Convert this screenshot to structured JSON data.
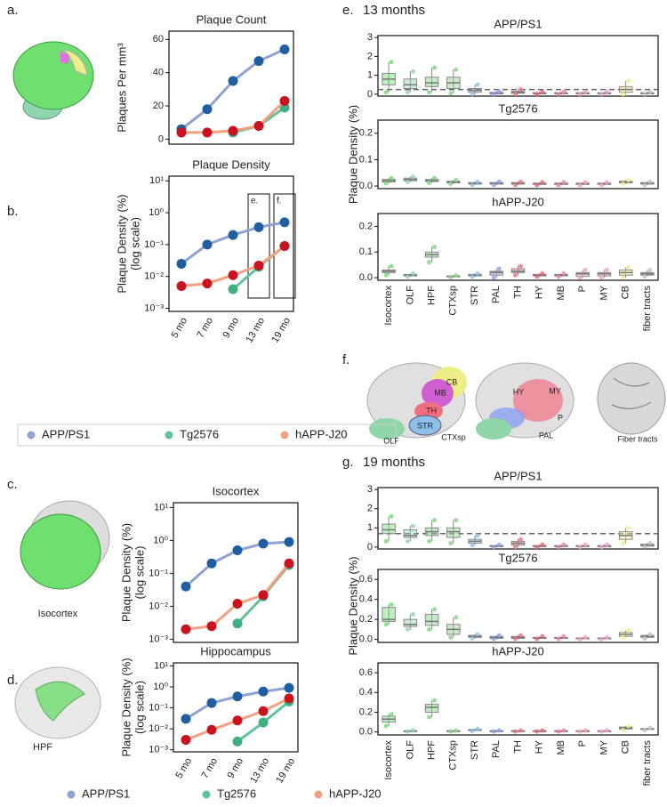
{
  "figure": {
    "letters": [
      "a.",
      "b.",
      "c.",
      "d.",
      "e.",
      "f.",
      "g."
    ],
    "e_header": "13 months",
    "g_header": "19 months",
    "brain_labels": [
      "Isocortex",
      "HPF"
    ],
    "f_labels": [
      "CB",
      "MB",
      "TH",
      "STR",
      "OLF",
      "CTXsp",
      "HY",
      "MY",
      "P",
      "PAL",
      "Fiber tracts"
    ]
  },
  "chart_data": [
    {
      "type": "line",
      "title": "Plaque Count",
      "ylabel": [
        "Plaques Per mm³"
      ],
      "ylim": [
        -3,
        65
      ],
      "yticks": [
        0,
        20,
        40,
        60
      ],
      "series": [
        {
          "name": "APP/PS1",
          "color": "#8ea3d3",
          "marker_color": "#1f5fa0",
          "values": [
            6,
            18,
            35,
            47,
            54
          ]
        },
        {
          "name": "Tg2576",
          "color": "#5ec29a",
          "marker_color": "#3fae82",
          "values": [
            null,
            null,
            4,
            8,
            19
          ]
        },
        {
          "name": "hAPP-J20",
          "color": "#f3a080",
          "marker_color": "#c8141e",
          "values": [
            4,
            4,
            5,
            8,
            23
          ]
        }
      ]
    },
    {
      "type": "line",
      "title": "Plaque Density",
      "ylabel": [
        "Plaque Density (%)",
        "(log scale)"
      ],
      "log": true,
      "ylim": [
        0.0008,
        14
      ],
      "yticks": [
        {
          "value": 0.001,
          "label": "10⁻³"
        },
        {
          "value": 0.01,
          "label": "10⁻²"
        },
        {
          "value": 0.1,
          "label": "10⁻¹"
        },
        {
          "value": 1,
          "label": "10⁰"
        },
        {
          "value": 10,
          "label": "10¹"
        }
      ],
      "categories": [
        "5 mo",
        "7 mo",
        "9 mo",
        "13 mo",
        "19 mo"
      ],
      "annotations": [
        null,
        null,
        null,
        "e.",
        "f."
      ],
      "series": [
        {
          "name": "APP/PS1",
          "color": "#8ea3d3",
          "marker_color": "#1f5fa0",
          "values": [
            0.025,
            0.1,
            0.2,
            0.35,
            0.5
          ]
        },
        {
          "name": "Tg2576",
          "color": "#5ec29a",
          "marker_color": "#3fae82",
          "values": [
            null,
            null,
            0.004,
            0.02,
            0.09
          ]
        },
        {
          "name": "hAPP-J20",
          "color": "#f3a080",
          "marker_color": "#c8141e",
          "values": [
            0.005,
            0.006,
            0.011,
            0.022,
            0.09
          ]
        }
      ]
    },
    {
      "type": "line",
      "title": "Isocortex",
      "ylabel": [
        "Plaque Density (%)",
        "(log scale)"
      ],
      "log": true,
      "ylim": [
        0.0008,
        14
      ],
      "yticks": [
        {
          "value": 0.001,
          "label": "10⁻³"
        },
        {
          "value": 0.01,
          "label": "10⁻²"
        },
        {
          "value": 0.1,
          "label": "10⁻¹"
        },
        {
          "value": 1,
          "label": "10⁰"
        },
        {
          "value": 10,
          "label": "10¹"
        }
      ],
      "series": [
        {
          "name": "APP/PS1",
          "color": "#8ea3d3",
          "marker_color": "#1f5fa0",
          "values": [
            0.04,
            0.2,
            0.5,
            0.8,
            0.9
          ]
        },
        {
          "name": "Tg2576",
          "color": "#5ec29a",
          "marker_color": "#3fae82",
          "values": [
            null,
            null,
            0.003,
            0.02,
            0.18
          ]
        },
        {
          "name": "hAPP-J20",
          "color": "#f3a080",
          "marker_color": "#c8141e",
          "values": [
            0.002,
            0.0025,
            0.012,
            0.022,
            0.2
          ]
        }
      ]
    },
    {
      "type": "line",
      "title": "Hippocampus",
      "ylabel": [
        "Plaque Density (%)",
        "(log scale)"
      ],
      "log": true,
      "ylim": [
        0.0008,
        14
      ],
      "yticks": [
        {
          "value": 0.001,
          "label": "10⁻³"
        },
        {
          "value": 0.01,
          "label": "10⁻²"
        },
        {
          "value": 0.1,
          "label": "10⁻¹"
        },
        {
          "value": 1,
          "label": "10⁰"
        },
        {
          "value": 10,
          "label": "10¹"
        }
      ],
      "categories": [
        "5 mo",
        "7 mo",
        "9 mo",
        "13 mo",
        "19 mo"
      ],
      "series": [
        {
          "name": "APP/PS1",
          "color": "#8ea3d3",
          "marker_color": "#1f5fa0",
          "values": [
            0.03,
            0.17,
            0.35,
            0.6,
            0.9
          ]
        },
        {
          "name": "Tg2576",
          "color": "#5ec29a",
          "marker_color": "#3fae82",
          "values": [
            null,
            null,
            0.0025,
            0.02,
            0.2
          ]
        },
        {
          "name": "hAPP-J20",
          "color": "#f3a080",
          "marker_color": "#c8141e",
          "values": [
            0.003,
            0.009,
            0.025,
            0.07,
            0.28
          ]
        }
      ]
    },
    {
      "type": "box",
      "title": "APP/PS1",
      "ylim": [
        -0.1,
        3.1
      ],
      "yticks": [
        0,
        1,
        2,
        3
      ],
      "reference_line": 0.25,
      "colors": [
        "#6fdf6f",
        "#8fd6a8",
        "#7fd37f",
        "#8ad08a",
        "#8cc0e8",
        "#8aa0f0",
        "#f07080",
        "#f06070",
        "#f080a0",
        "#f0a0b0",
        "#f0a0c8",
        "#eeee88",
        "#c0c0c0"
      ],
      "low": [
        0.1,
        0.1,
        0.1,
        0.05,
        0,
        0,
        0,
        0,
        0,
        0,
        0,
        0,
        0
      ],
      "q1": [
        0.5,
        0.3,
        0.4,
        0.3,
        0.1,
        0.02,
        0.05,
        0.02,
        0.02,
        0.02,
        0.02,
        0.1,
        0.02
      ],
      "median": [
        0.8,
        0.5,
        0.6,
        0.6,
        0.2,
        0.05,
        0.1,
        0.05,
        0.05,
        0.05,
        0.05,
        0.25,
        0.05
      ],
      "q3": [
        1.1,
        0.8,
        0.9,
        0.9,
        0.3,
        0.1,
        0.15,
        0.08,
        0.08,
        0.08,
        0.08,
        0.4,
        0.08
      ],
      "high": [
        1.7,
        1.2,
        1.4,
        1.3,
        0.5,
        0.15,
        0.25,
        0.12,
        0.12,
        0.12,
        0.12,
        0.7,
        0.12
      ]
    },
    {
      "type": "box",
      "title": "Tg2576",
      "ylabel": "Plaque Density (%)",
      "ylim": [
        -0.01,
        0.25
      ],
      "yticks": [
        {
          "value": 0,
          "label": "0.0"
        },
        0.1,
        0.2
      ],
      "colors": [
        "#6fdf6f",
        "#8fd6a8",
        "#7fd37f",
        "#8ad08a",
        "#8cc0e8",
        "#8aa0f0",
        "#f07080",
        "#f06070",
        "#f080a0",
        "#f0a0b0",
        "#f0a0c8",
        "#eeee88",
        "#c0c0c0"
      ],
      "low": [
        0.01,
        0.015,
        0.012,
        0.008,
        0.004,
        0.004,
        0.004,
        0.003,
        0.003,
        0.003,
        0.003,
        0.008,
        0.004
      ],
      "q1": [
        0.015,
        0.02,
        0.017,
        0.012,
        0.007,
        0.007,
        0.007,
        0.006,
        0.006,
        0.006,
        0.006,
        0.012,
        0.007
      ],
      "median": [
        0.02,
        0.025,
        0.02,
        0.015,
        0.01,
        0.01,
        0.01,
        0.008,
        0.008,
        0.008,
        0.008,
        0.015,
        0.01
      ],
      "q3": [
        0.025,
        0.03,
        0.025,
        0.018,
        0.013,
        0.013,
        0.013,
        0.011,
        0.011,
        0.011,
        0.011,
        0.018,
        0.013
      ],
      "high": [
        0.03,
        0.035,
        0.03,
        0.022,
        0.016,
        0.016,
        0.016,
        0.014,
        0.014,
        0.014,
        0.014,
        0.022,
        0.016
      ]
    },
    {
      "type": "box",
      "title": "hAPP-J20",
      "ylim": [
        -0.01,
        0.25
      ],
      "yticks": [
        {
          "value": 0,
          "label": "0.0"
        },
        0.1,
        0.2
      ],
      "categories": [
        "Isocortex",
        "OLF",
        "HPF",
        "CTXsp",
        "STR",
        "PAL",
        "TH",
        "HY",
        "MB",
        "P",
        "MY",
        "CB",
        "fiber tracts"
      ],
      "colors": [
        "#6fdf6f",
        "#8fd6a8",
        "#7fd37f",
        "#8ad08a",
        "#8cc0e8",
        "#8aa0f0",
        "#f07080",
        "#f06070",
        "#f080a0",
        "#f0a0b0",
        "#f0a0c8",
        "#eeee88",
        "#c0c0c0"
      ],
      "low": [
        0.01,
        0.004,
        0.06,
        0.002,
        0.004,
        0,
        0.01,
        0.004,
        0.004,
        0,
        0,
        0,
        0.005
      ],
      "q1": [
        0.02,
        0.007,
        0.08,
        0.004,
        0.007,
        0.01,
        0.02,
        0.007,
        0.007,
        0.005,
        0.007,
        0.01,
        0.01
      ],
      "median": [
        0.025,
        0.01,
        0.09,
        0.005,
        0.01,
        0.02,
        0.025,
        0.01,
        0.01,
        0.015,
        0.015,
        0.02,
        0.015
      ],
      "q3": [
        0.03,
        0.013,
        0.1,
        0.007,
        0.013,
        0.025,
        0.035,
        0.013,
        0.013,
        0.02,
        0.02,
        0.03,
        0.02
      ],
      "high": [
        0.045,
        0.016,
        0.12,
        0.009,
        0.016,
        0.035,
        0.045,
        0.016,
        0.016,
        0.03,
        0.03,
        0.04,
        0.03
      ]
    },
    {
      "type": "box",
      "title": "APP/PS1",
      "ylim": [
        -0.1,
        3.1
      ],
      "yticks": [
        0,
        1,
        2,
        3
      ],
      "reference_line": 0.7,
      "colors": [
        "#6fdf6f",
        "#8fd6a8",
        "#7fd37f",
        "#8ad08a",
        "#8cc0e8",
        "#8aa0f0",
        "#f07080",
        "#f06070",
        "#f080a0",
        "#f0a0b0",
        "#f0a0c8",
        "#eeee88",
        "#c0c0c0"
      ],
      "low": [
        0.3,
        0.3,
        0.3,
        0.2,
        0.1,
        0,
        0,
        0,
        0,
        0,
        0,
        0.2,
        0.02
      ],
      "q1": [
        0.7,
        0.5,
        0.6,
        0.5,
        0.2,
        0.02,
        0.1,
        0.02,
        0.02,
        0.02,
        0.02,
        0.4,
        0.05
      ],
      "median": [
        0.9,
        0.6,
        0.8,
        0.8,
        0.3,
        0.05,
        0.2,
        0.05,
        0.05,
        0.05,
        0.05,
        0.6,
        0.1
      ],
      "q3": [
        1.2,
        0.9,
        1.0,
        1.0,
        0.4,
        0.08,
        0.3,
        0.08,
        0.08,
        0.08,
        0.08,
        0.8,
        0.15
      ],
      "high": [
        1.6,
        1.1,
        1.4,
        1.4,
        0.6,
        0.12,
        0.4,
        0.12,
        0.12,
        0.12,
        0.12,
        1.0,
        0.2
      ]
    },
    {
      "type": "box",
      "title": "Tg2576",
      "ylabel": "Plaque Density (%)",
      "ylim": [
        -0.03,
        0.7
      ],
      "yticks": [
        {
          "value": 0,
          "label": "0.0"
        },
        0.2,
        0.4,
        0.6
      ],
      "colors": [
        "#6fdf6f",
        "#8fd6a8",
        "#7fd37f",
        "#8ad08a",
        "#8cc0e8",
        "#8aa0f0",
        "#f07080",
        "#f06070",
        "#f080a0",
        "#f0a0b0",
        "#f0a0c8",
        "#eeee88",
        "#c0c0c0"
      ],
      "low": [
        0.15,
        0.1,
        0.1,
        0.02,
        0.01,
        0.005,
        0.005,
        0.005,
        0.005,
        0.003,
        0.003,
        0.02,
        0.01
      ],
      "q1": [
        0.18,
        0.13,
        0.14,
        0.05,
        0.02,
        0.01,
        0.01,
        0.01,
        0.01,
        0.006,
        0.006,
        0.03,
        0.02
      ],
      "median": [
        0.2,
        0.15,
        0.18,
        0.1,
        0.03,
        0.02,
        0.02,
        0.015,
        0.015,
        0.01,
        0.01,
        0.05,
        0.03
      ],
      "q3": [
        0.32,
        0.2,
        0.25,
        0.15,
        0.04,
        0.03,
        0.03,
        0.02,
        0.02,
        0.015,
        0.015,
        0.07,
        0.04
      ],
      "high": [
        0.35,
        0.25,
        0.3,
        0.22,
        0.05,
        0.04,
        0.04,
        0.03,
        0.03,
        0.02,
        0.02,
        0.09,
        0.05
      ]
    },
    {
      "type": "box",
      "title": "hAPP-J20",
      "ylim": [
        -0.03,
        0.7
      ],
      "yticks": [
        {
          "value": 0,
          "label": "0.0"
        },
        0.2,
        0.4,
        0.6
      ],
      "categories": [
        "Isocortex",
        "OLF",
        "HPF",
        "CTXsp",
        "STR",
        "PAL",
        "TH",
        "HY",
        "MB",
        "P",
        "MY",
        "CB",
        "fiber tracts"
      ],
      "colors": [
        "#6fdf6f",
        "#8fd6a8",
        "#7fd37f",
        "#8ad08a",
        "#8cc0e8",
        "#8aa0f0",
        "#f07080",
        "#f06070",
        "#f080a0",
        "#f0a0b0",
        "#f0a0c8",
        "#eeee88",
        "#c0c0c0"
      ],
      "low": [
        0.06,
        0.005,
        0.15,
        0.005,
        0.01,
        0.005,
        0.005,
        0.005,
        0.005,
        0.005,
        0.005,
        0.02,
        0.02
      ],
      "q1": [
        0.1,
        0.008,
        0.2,
        0.008,
        0.015,
        0.008,
        0.008,
        0.008,
        0.008,
        0.008,
        0.008,
        0.03,
        0.025
      ],
      "median": [
        0.13,
        0.01,
        0.25,
        0.01,
        0.02,
        0.01,
        0.01,
        0.01,
        0.01,
        0.01,
        0.01,
        0.04,
        0.03
      ],
      "q3": [
        0.16,
        0.012,
        0.28,
        0.012,
        0.025,
        0.012,
        0.012,
        0.012,
        0.012,
        0.012,
        0.012,
        0.05,
        0.035
      ],
      "high": [
        0.18,
        0.015,
        0.32,
        0.015,
        0.03,
        0.015,
        0.015,
        0.015,
        0.015,
        0.015,
        0.015,
        0.06,
        0.04
      ]
    }
  ]
}
